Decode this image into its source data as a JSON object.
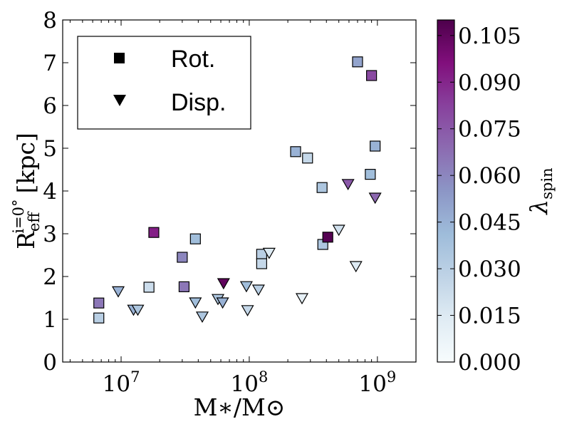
{
  "chart_data": {
    "type": "scatter",
    "xlabel": "M∗/M⊙",
    "ylabel": "R",
    "ylabel_super": "i=0°",
    "ylabel_sub": "eff",
    "ylabel_unit": "[kpc]",
    "xscale": "log",
    "xlim": [
      3500000,
      2000000000
    ],
    "ylim": [
      0,
      8
    ],
    "x_ticks": [
      {
        "value": 10000000,
        "base": "10",
        "exp": "7"
      },
      {
        "value": 100000000,
        "base": "10",
        "exp": "8"
      },
      {
        "value": 1000000000,
        "base": "10",
        "exp": "9"
      }
    ],
    "y_ticks": [
      "0",
      "1",
      "2",
      "3",
      "4",
      "5",
      "6",
      "7",
      "8"
    ],
    "legend": {
      "position": "top-left",
      "entries": [
        {
          "label": "Rot.",
          "marker": "square"
        },
        {
          "label": "Disp.",
          "marker": "triangle-down"
        }
      ]
    },
    "colorbar": {
      "label": "λ",
      "label_sub": "spin",
      "range": [
        0.0,
        0.11
      ],
      "ticks": [
        "0.000",
        "0.015",
        "0.030",
        "0.045",
        "0.060",
        "0.075",
        "0.090",
        "0.105"
      ],
      "colormap": [
        "#f7fcfd",
        "#e0ecf4",
        "#bfd3e6",
        "#9ebcda",
        "#8c96c6",
        "#8c6bb1",
        "#88419d",
        "#810f7c",
        "#4d004b"
      ]
    },
    "series": [
      {
        "name": "Rot.",
        "marker": "square",
        "points": [
          {
            "x": 6700000,
            "y": 1.38,
            "lambda": 0.065
          },
          {
            "x": 6700000,
            "y": 1.03,
            "lambda": 0.03
          },
          {
            "x": 16500000,
            "y": 1.75,
            "lambda": 0.022
          },
          {
            "x": 18000000,
            "y": 3.03,
            "lambda": 0.092
          },
          {
            "x": 30000000,
            "y": 2.45,
            "lambda": 0.06
          },
          {
            "x": 31000000,
            "y": 1.76,
            "lambda": 0.065
          },
          {
            "x": 38000000,
            "y": 2.88,
            "lambda": 0.04
          },
          {
            "x": 125000000,
            "y": 2.52,
            "lambda": 0.03
          },
          {
            "x": 125000000,
            "y": 2.3,
            "lambda": 0.025
          },
          {
            "x": 230000000,
            "y": 4.92,
            "lambda": 0.045
          },
          {
            "x": 285000000,
            "y": 4.77,
            "lambda": 0.025
          },
          {
            "x": 370000000,
            "y": 4.08,
            "lambda": 0.035
          },
          {
            "x": 375000000,
            "y": 2.75,
            "lambda": 0.035
          },
          {
            "x": 410000000,
            "y": 2.92,
            "lambda": 0.108
          },
          {
            "x": 700000000,
            "y": 7.02,
            "lambda": 0.05
          },
          {
            "x": 880000000,
            "y": 4.39,
            "lambda": 0.04
          },
          {
            "x": 900000000,
            "y": 6.7,
            "lambda": 0.08
          },
          {
            "x": 960000000,
            "y": 5.05,
            "lambda": 0.045
          }
        ]
      },
      {
        "name": "Disp.",
        "marker": "triangle-down",
        "points": [
          {
            "x": 9500000,
            "y": 1.66,
            "lambda": 0.045
          },
          {
            "x": 12500000,
            "y": 1.23,
            "lambda": 0.045
          },
          {
            "x": 13500000,
            "y": 1.23,
            "lambda": 0.035
          },
          {
            "x": 38000000,
            "y": 1.4,
            "lambda": 0.04
          },
          {
            "x": 43000000,
            "y": 1.07,
            "lambda": 0.035
          },
          {
            "x": 57000000,
            "y": 1.48,
            "lambda": 0.035
          },
          {
            "x": 62000000,
            "y": 1.4,
            "lambda": 0.045
          },
          {
            "x": 63000000,
            "y": 1.85,
            "lambda": 0.105
          },
          {
            "x": 95000000,
            "y": 1.78,
            "lambda": 0.04
          },
          {
            "x": 97000000,
            "y": 1.22,
            "lambda": 0.025
          },
          {
            "x": 118000000,
            "y": 1.7,
            "lambda": 0.03
          },
          {
            "x": 143000000,
            "y": 2.56,
            "lambda": 0.015
          },
          {
            "x": 258000000,
            "y": 1.5,
            "lambda": 0.01
          },
          {
            "x": 500000000,
            "y": 3.1,
            "lambda": 0.02
          },
          {
            "x": 590000000,
            "y": 4.17,
            "lambda": 0.075
          },
          {
            "x": 680000000,
            "y": 2.25,
            "lambda": 0.015
          },
          {
            "x": 960000000,
            "y": 3.85,
            "lambda": 0.07
          }
        ]
      }
    ]
  }
}
